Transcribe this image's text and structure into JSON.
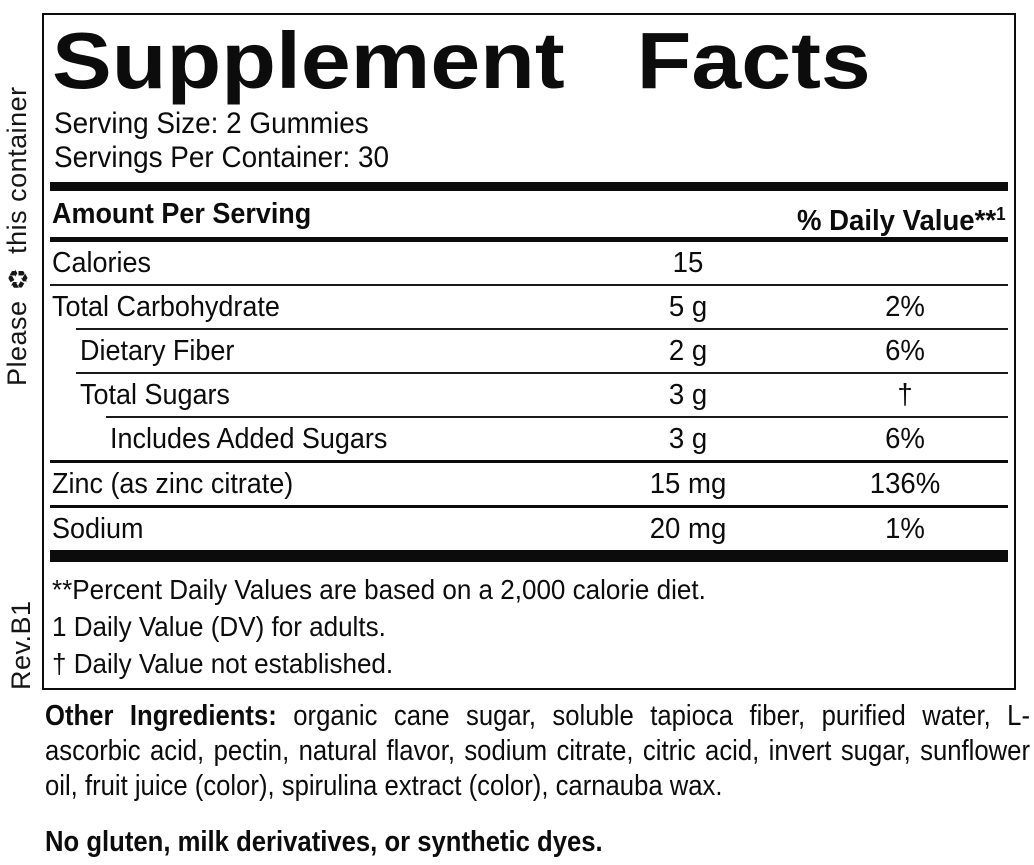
{
  "side": {
    "recycle_text_before": "Please ",
    "recycle_icon": "♻",
    "recycle_text_after": " this container",
    "revision": "Rev.B1"
  },
  "panel": {
    "title": "Supplement Facts",
    "serving_size": "Serving Size: 2 Gummies",
    "servings_per_container": "Servings Per Container: 30",
    "header": {
      "amount_col": "Amount Per Serving",
      "dv_col": "% Daily Value**",
      "dv_sup": "1"
    },
    "rows": [
      {
        "name": "Calories",
        "amount": "15",
        "dv": ""
      },
      {
        "name": "Total Carbohydrate",
        "amount": "5 g",
        "dv": "2%"
      },
      {
        "name": "Dietary Fiber",
        "amount": "2 g",
        "dv": "6%"
      },
      {
        "name": "Total Sugars",
        "amount": "3 g",
        "dv": "†"
      },
      {
        "name": "Includes Added Sugars",
        "amount": "3 g",
        "dv": "6%"
      },
      {
        "name": "Zinc (as zinc citrate)",
        "amount": "15 mg",
        "dv": "136%"
      },
      {
        "name": "Sodium",
        "amount": "20 mg",
        "dv": "1%"
      }
    ],
    "footnotes": [
      "**Percent Daily Values are based on a 2,000 calorie diet.",
      "1 Daily Value (DV) for adults.",
      "† Daily Value not established."
    ]
  },
  "ingredients": {
    "label": "Other Ingredients:",
    "text": " organic cane sugar, soluble tapioca fiber, purified water, L-ascorbic acid, pectin, natural flavor, sodium citrate, citric acid, invert sugar, sunflower oil, fruit juice (color), spirulina extract (color), carnauba wax."
  },
  "claim": "No gluten, milk derivatives, or synthetic dyes.",
  "colors": {
    "ink": "#0c0c0c",
    "paper": "#ffffff"
  }
}
